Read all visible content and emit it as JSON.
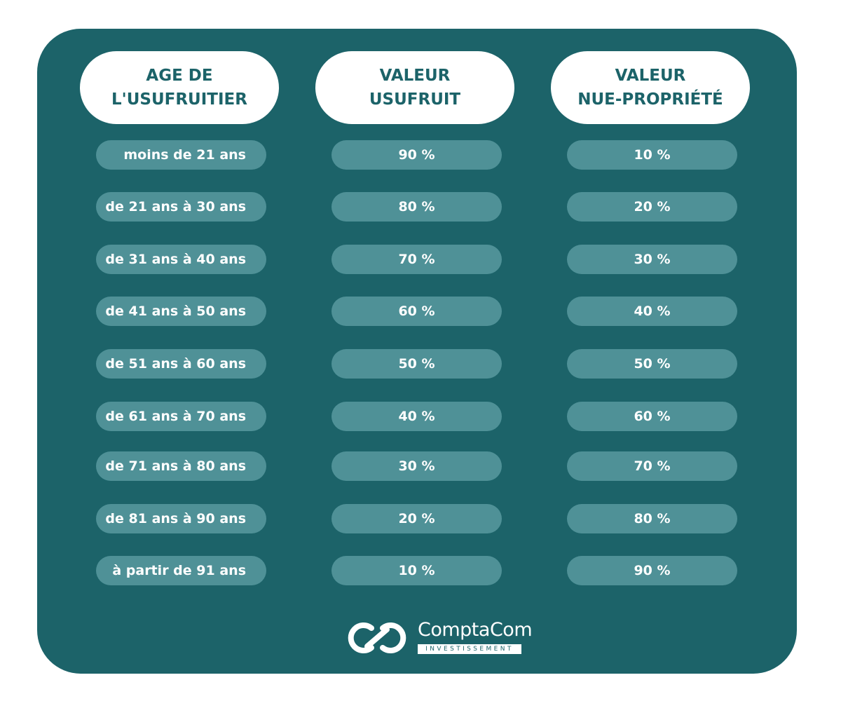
{
  "headers": [
    {
      "line1": "AGE DE",
      "line2": "L'USUFRUITIER"
    },
    {
      "line1": "VALEUR",
      "line2": "USUFRUIT"
    },
    {
      "line1": "VALEUR",
      "line2": "NUE-PROPRIÉTÉ"
    }
  ],
  "rows": [
    {
      "age": "moins de 21 ans",
      "usufruit": "90 %",
      "nue": "10 %"
    },
    {
      "age": "de 21 ans à 30 ans",
      "usufruit": "80 %",
      "nue": "20 %"
    },
    {
      "age": "de 31 ans à 40 ans",
      "usufruit": "70 %",
      "nue": "30 %"
    },
    {
      "age": "de 41 ans à 50 ans",
      "usufruit": "60 %",
      "nue": "40 %"
    },
    {
      "age": "de 51 ans à 60 ans",
      "usufruit": "50 %",
      "nue": "50 %"
    },
    {
      "age": "de 61 ans à 70 ans",
      "usufruit": "40 %",
      "nue": "60 %"
    },
    {
      "age": "de 71 ans à 80 ans",
      "usufruit": "30 %",
      "nue": "70 %"
    },
    {
      "age": "de 81 ans à 90 ans",
      "usufruit": "20 %",
      "nue": "80 %"
    },
    {
      "age": "à partir de 91 ans",
      "usufruit": "10 %",
      "nue": "90 %"
    }
  ],
  "logo": {
    "name": "ComptaCom",
    "tagline": "INVESTISSEMENT",
    "icon": "infinity-link-icon"
  },
  "colors": {
    "background": "#1c6369",
    "pill": "#4f9197",
    "header": "#ffffff"
  }
}
